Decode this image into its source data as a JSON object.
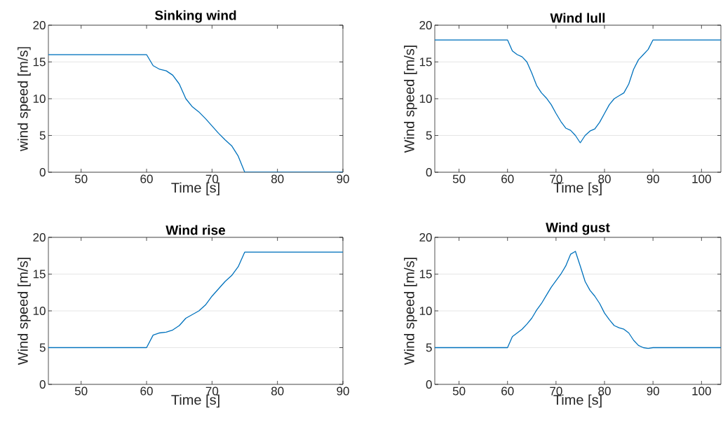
{
  "chart_data": [
    {
      "type": "line",
      "title": "Sinking wind",
      "xlabel": "Time [s]",
      "ylabel": "wind speed [m/s]",
      "color": "#0072bd",
      "grid": "y",
      "xlim": [
        45,
        90
      ],
      "ylim": [
        0,
        20
      ],
      "xticks": [
        50,
        60,
        70,
        80,
        90
      ],
      "yticks": [
        0,
        5,
        10,
        15,
        20
      ],
      "x": [
        45,
        60,
        61,
        62,
        63,
        64,
        65,
        66,
        67,
        68,
        69,
        70,
        71,
        72,
        73,
        74,
        75,
        90
      ],
      "values": [
        16,
        16,
        14.5,
        14,
        13.8,
        13.2,
        12,
        10,
        8.9,
        8.2,
        7.3,
        6.3,
        5.3,
        4.4,
        3.6,
        2.2,
        0,
        0
      ]
    },
    {
      "type": "line",
      "title": "Wind lull",
      "xlabel": "Time [s]",
      "ylabel": "Wind speed [m/s]",
      "color": "#0072bd",
      "grid": "y",
      "xlim": [
        45,
        104
      ],
      "ylim": [
        0,
        20
      ],
      "xticks": [
        50,
        60,
        70,
        80,
        90,
        100
      ],
      "yticks": [
        0,
        5,
        10,
        15,
        20
      ],
      "x": [
        45,
        60,
        61,
        62,
        63,
        64,
        65,
        66,
        67,
        68,
        69,
        70,
        71,
        72,
        73,
        74,
        75,
        76,
        77,
        78,
        79,
        80,
        81,
        82,
        83,
        84,
        85,
        86,
        87,
        88,
        89,
        90,
        104
      ],
      "values": [
        18,
        18,
        16.5,
        16,
        15.7,
        15,
        13.5,
        11.8,
        10.8,
        10.1,
        9.2,
        8.0,
        6.9,
        6.0,
        5.7,
        5.0,
        4.0,
        5.0,
        5.6,
        5.9,
        6.8,
        8.0,
        9.2,
        10.0,
        10.4,
        10.8,
        12,
        14,
        15.3,
        16,
        16.7,
        18,
        18
      ]
    },
    {
      "type": "line",
      "title": "Wind rise",
      "xlabel": "Time [s]",
      "ylabel": "Wind speed [m/s]",
      "color": "#0072bd",
      "grid": "y",
      "xlim": [
        45,
        90
      ],
      "ylim": [
        0,
        20
      ],
      "xticks": [
        50,
        60,
        70,
        80,
        90
      ],
      "yticks": [
        0,
        5,
        10,
        15,
        20
      ],
      "x": [
        45,
        60,
        61,
        62,
        63,
        64,
        65,
        66,
        67,
        68,
        69,
        70,
        71,
        72,
        73,
        74,
        75,
        90
      ],
      "values": [
        5,
        5,
        6.7,
        7.0,
        7.1,
        7.4,
        8,
        9,
        9.5,
        10,
        10.8,
        12,
        13,
        14,
        14.8,
        16,
        18,
        18
      ]
    },
    {
      "type": "line",
      "title": "Wind gust",
      "xlabel": "Time [s]",
      "ylabel": "Wind speed [m/s]",
      "color": "#0072bd",
      "grid": "y",
      "xlim": [
        45,
        104
      ],
      "ylim": [
        0,
        20
      ],
      "xticks": [
        50,
        60,
        70,
        80,
        90,
        100
      ],
      "yticks": [
        0,
        5,
        10,
        15,
        20
      ],
      "x": [
        45,
        60,
        61,
        62,
        63,
        64,
        65,
        66,
        67,
        68,
        69,
        70,
        71,
        72,
        73,
        74,
        75,
        76,
        77,
        78,
        79,
        80,
        81,
        82,
        83,
        84,
        85,
        86,
        87,
        88,
        89,
        90,
        104
      ],
      "values": [
        5,
        5,
        6.5,
        7.0,
        7.5,
        8.2,
        9.0,
        10.1,
        11.0,
        12.1,
        13.2,
        14.1,
        15.0,
        16.1,
        17.7,
        18.1,
        16.1,
        14.0,
        12.8,
        12.0,
        11.0,
        9.7,
        8.8,
        8.0,
        7.7,
        7.5,
        7.0,
        6.0,
        5.3,
        5.0,
        4.9,
        5,
        5
      ]
    }
  ]
}
